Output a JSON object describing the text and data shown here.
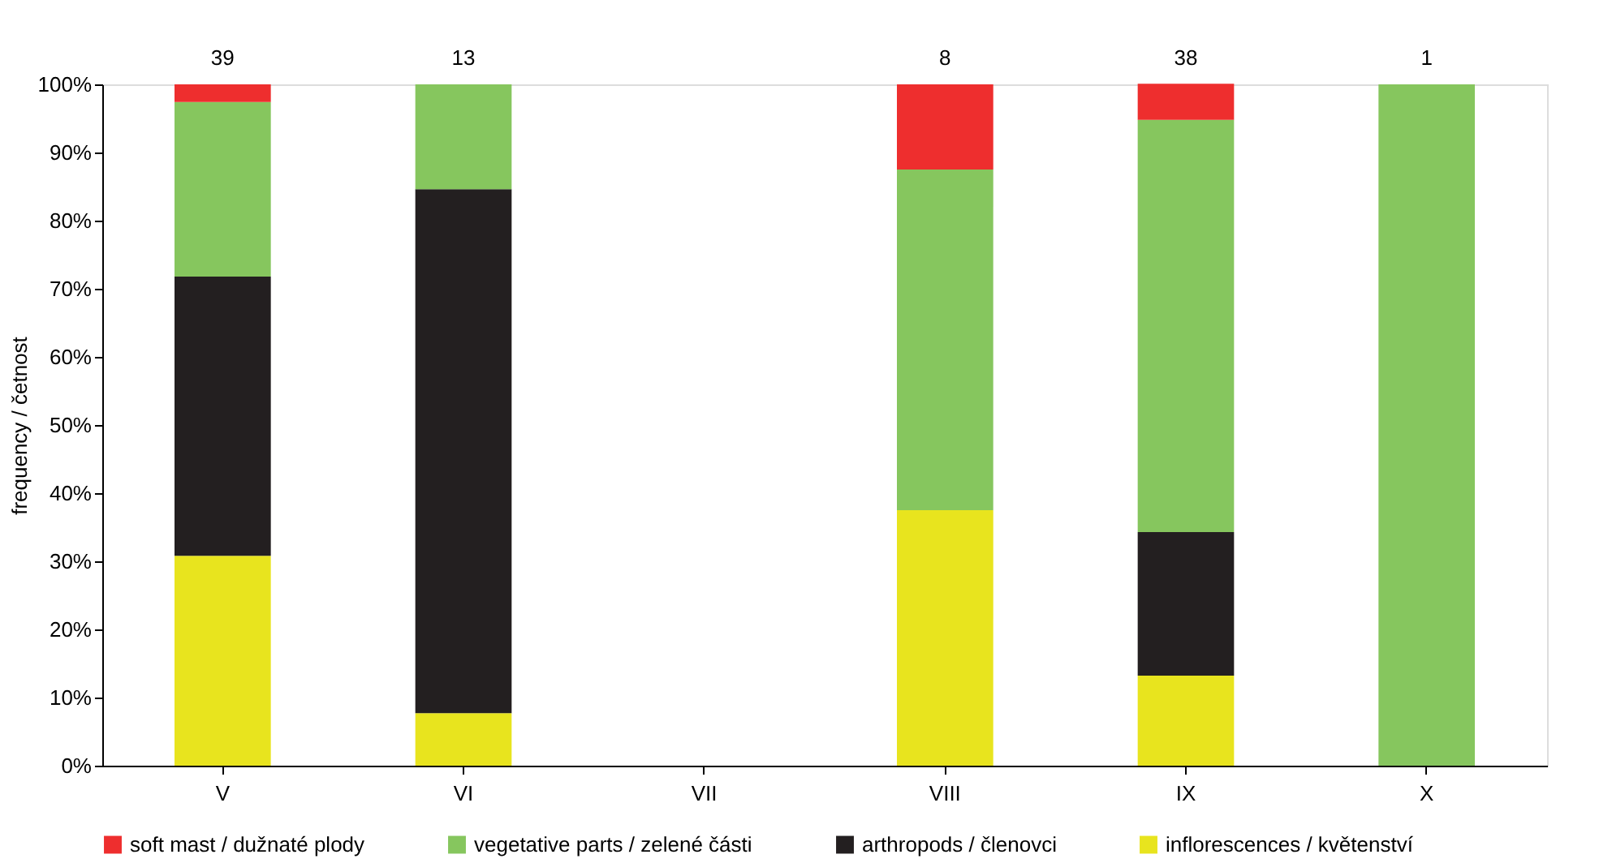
{
  "chart_data": {
    "type": "bar",
    "stacked": true,
    "ylabel": "frequency / četnost",
    "categories": [
      "V",
      "VI",
      "VII",
      "VIII",
      "IX",
      "X"
    ],
    "series": [
      {
        "name": "inflorescences / květenství",
        "color": "#e8e41e",
        "values": [
          30.8,
          7.7,
          null,
          37.5,
          13.2,
          null
        ]
      },
      {
        "name": "arthropods / členovci",
        "color": "#231f20",
        "values": [
          41.0,
          76.9,
          null,
          null,
          21.1,
          null
        ]
      },
      {
        "name": "vegetative parts / zelené části",
        "color": "#86c65e",
        "values": [
          25.6,
          15.4,
          null,
          50.0,
          60.5,
          100
        ]
      },
      {
        "name": "soft mast / dužnaté plody",
        "color": "#ee2e2e",
        "values": [
          2.6,
          null,
          null,
          12.5,
          5.3,
          null
        ]
      }
    ],
    "ylim": [
      0,
      100
    ],
    "yticks": [
      {
        "value": 0,
        "label": "0%"
      },
      {
        "value": 10,
        "label": "10%"
      },
      {
        "value": 20,
        "label": "20%"
      },
      {
        "value": 30,
        "label": "30%"
      },
      {
        "value": 40,
        "label": "40%"
      },
      {
        "value": 50,
        "label": "50%"
      },
      {
        "value": 60,
        "label": "60%"
      },
      {
        "value": 70,
        "label": "70%"
      },
      {
        "value": 80,
        "label": "80%"
      },
      {
        "value": 90,
        "label": "90%"
      },
      {
        "value": 100,
        "label": "100%"
      }
    ],
    "annotations": [
      {
        "text": "39",
        "x": "V",
        "y": 100
      },
      {
        "text": "13",
        "x": "VI",
        "y": 100
      },
      {
        "text": "8",
        "x": "VIII",
        "y": 100
      },
      {
        "text": "38",
        "x": "IX",
        "y": 100
      },
      {
        "text": "1",
        "x": "X",
        "y": 100
      }
    ],
    "legend": "bottom",
    "grid": false
  }
}
